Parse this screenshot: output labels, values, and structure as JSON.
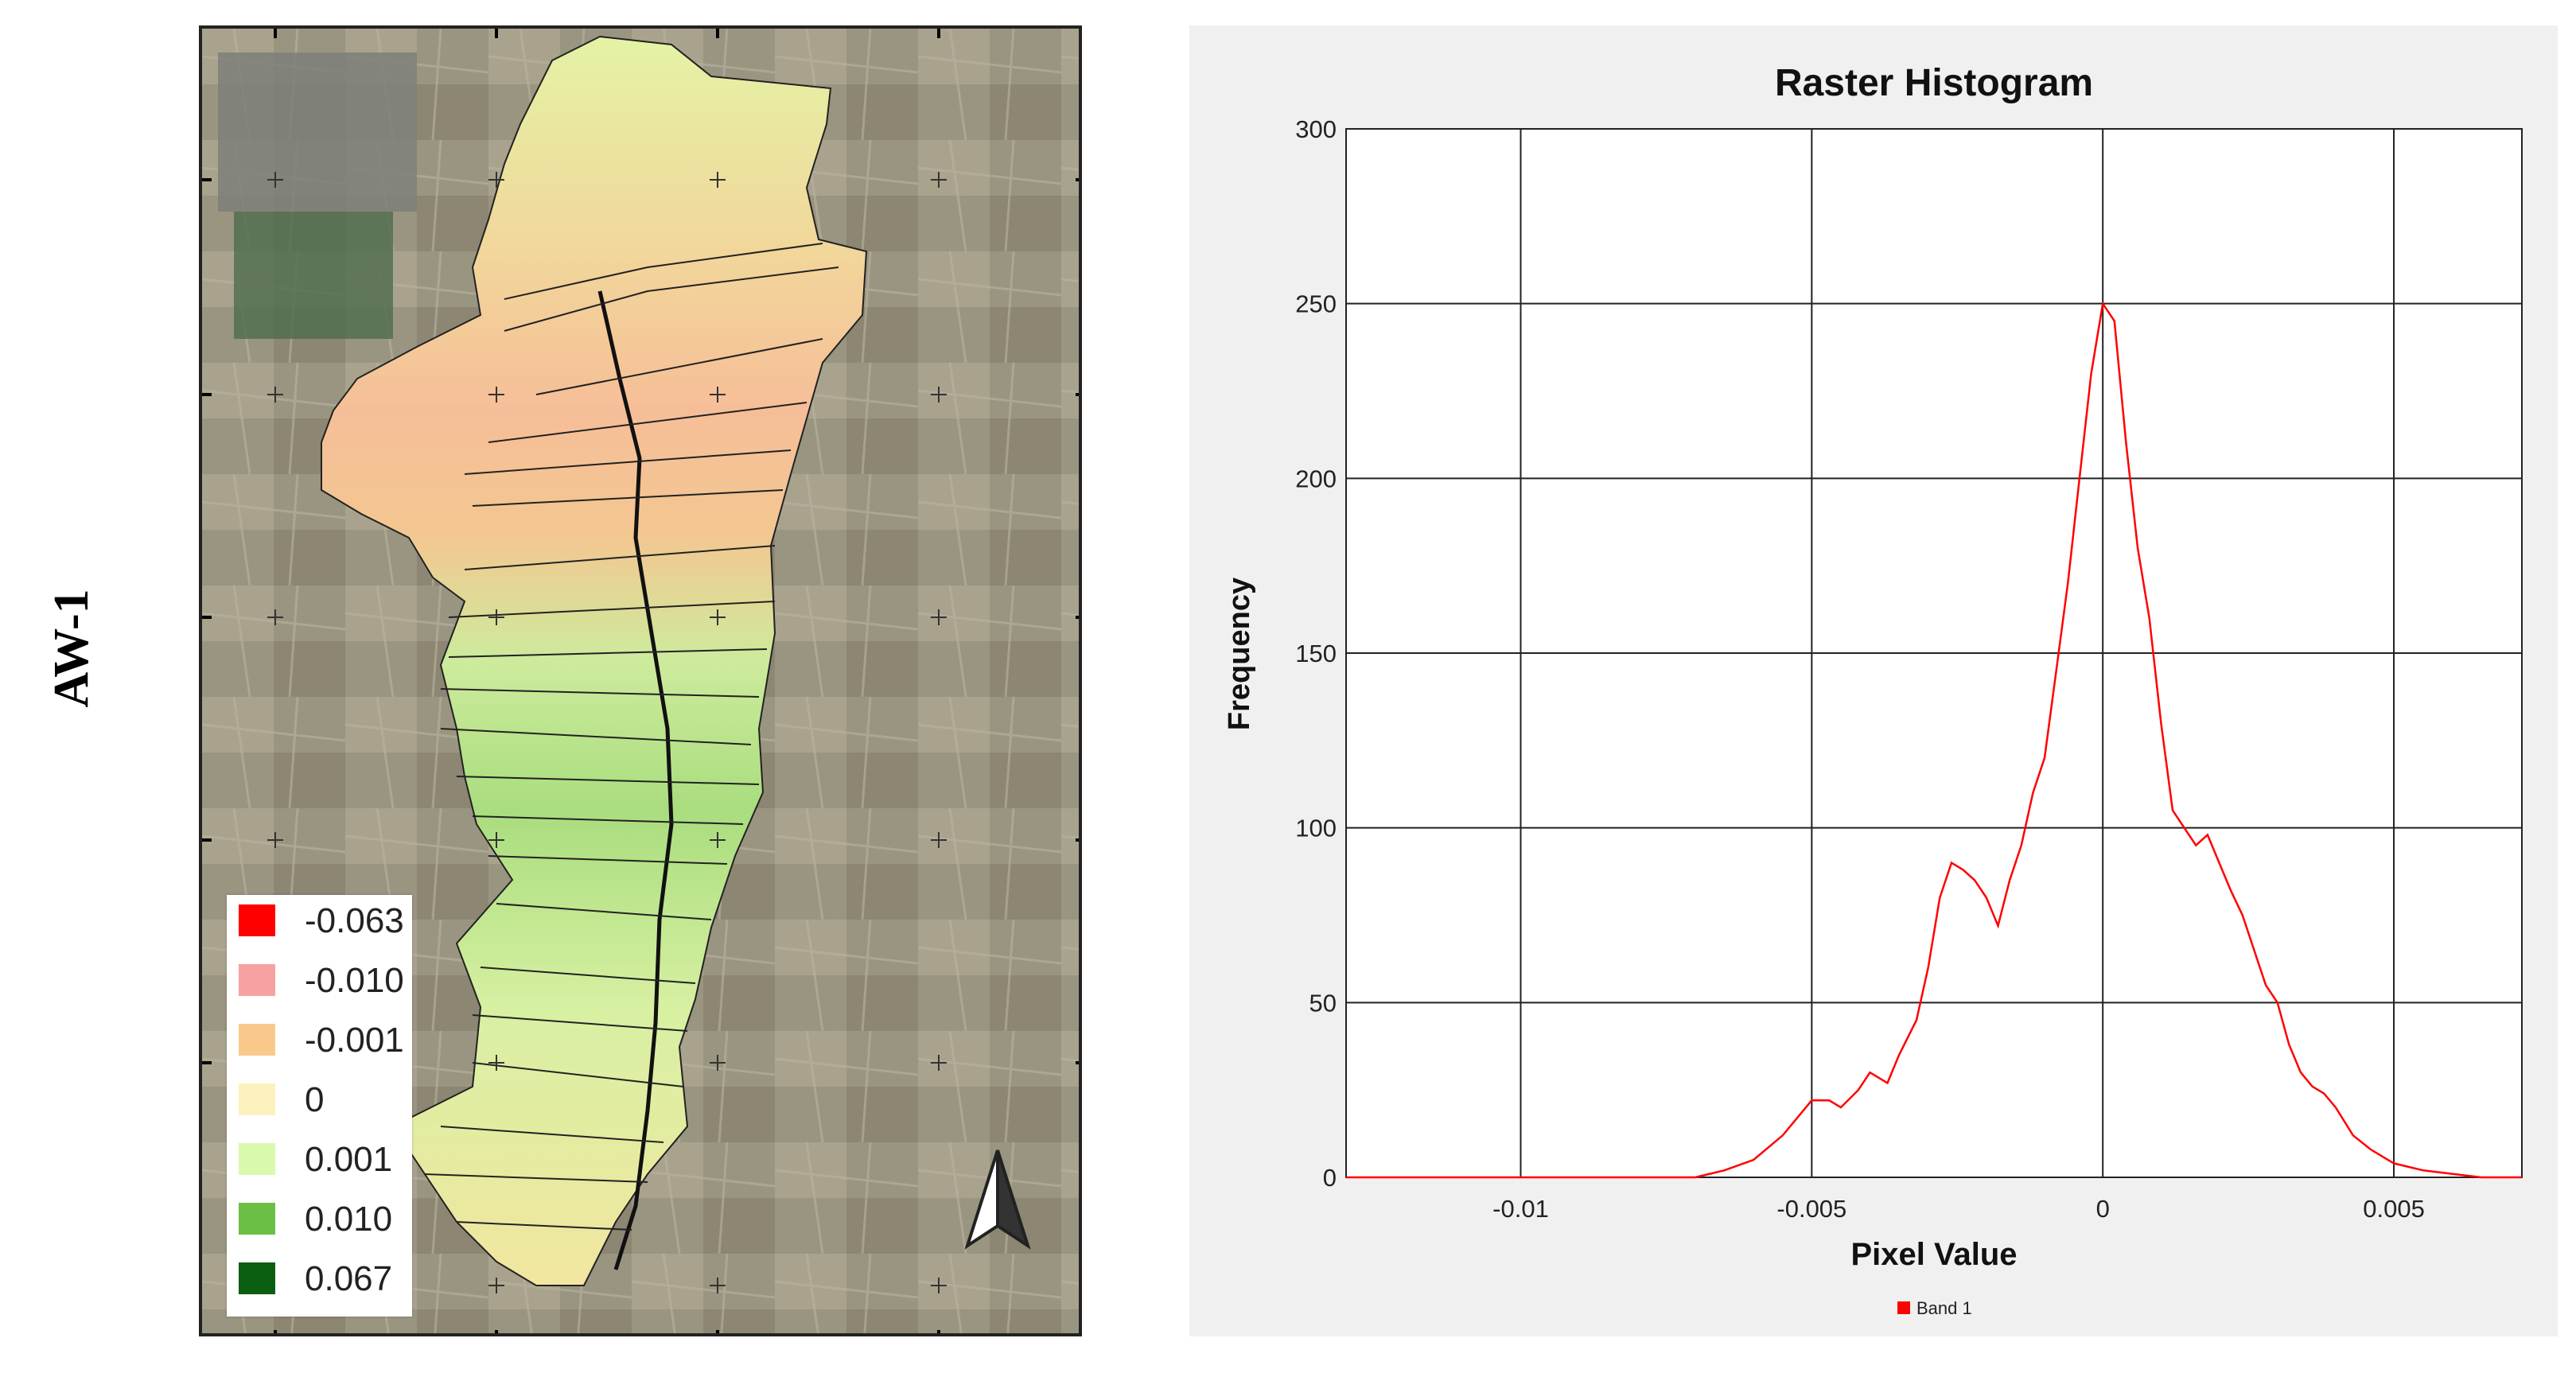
{
  "row_label": "AW-1",
  "legend": [
    {
      "label": "-0.063",
      "color": "#ff0000"
    },
    {
      "label": "-0.010",
      "color": "#f6a2a2"
    },
    {
      "label": "-0.001",
      "color": "#f9c98c"
    },
    {
      "label": "0",
      "color": "#fdf1bd"
    },
    {
      "label": "0.001",
      "color": "#d9f9ad"
    },
    {
      "label": "0.010",
      "color": "#6cbf45"
    },
    {
      "label": "0.067",
      "color": "#0a5e10"
    }
  ],
  "map": {
    "north_arrow": "north-arrow-icon"
  },
  "chart_data": {
    "type": "line",
    "title": "Raster Histogram",
    "xlabel": "Pixel Value",
    "ylabel": "Frequency",
    "xlim": [
      -0.013,
      0.0072
    ],
    "ylim": [
      0,
      300
    ],
    "xticks": [
      -0.01,
      -0.005,
      0,
      0.005
    ],
    "xtick_labels": [
      "-0.01",
      "-0.005",
      "0",
      "0.005"
    ],
    "yticks": [
      0,
      50,
      100,
      150,
      200,
      250,
      300
    ],
    "ytick_labels": [
      "0",
      "50",
      "100",
      "150",
      "200",
      "250",
      "300"
    ],
    "grid": true,
    "legend_position": "bottom-center",
    "series": [
      {
        "name": "Band 1",
        "color": "#ff0000",
        "x": [
          -0.013,
          -0.012,
          -0.011,
          -0.01,
          -0.009,
          -0.008,
          -0.007,
          -0.0065,
          -0.006,
          -0.0055,
          -0.005,
          -0.0047,
          -0.0045,
          -0.0042,
          -0.004,
          -0.0037,
          -0.0035,
          -0.0032,
          -0.003,
          -0.0028,
          -0.0026,
          -0.0024,
          -0.0022,
          -0.002,
          -0.0018,
          -0.0016,
          -0.0014,
          -0.0012,
          -0.001,
          -0.0008,
          -0.0006,
          -0.0004,
          -0.0002,
          0.0,
          0.0002,
          0.0004,
          0.0006,
          0.0008,
          0.001,
          0.0012,
          0.0014,
          0.0016,
          0.0018,
          0.002,
          0.0022,
          0.0024,
          0.0026,
          0.0028,
          0.003,
          0.0032,
          0.0034,
          0.0036,
          0.0038,
          0.004,
          0.0043,
          0.0046,
          0.005,
          0.0055,
          0.006,
          0.0065,
          0.0072
        ],
        "values": [
          0,
          0,
          0,
          0,
          0,
          0,
          0,
          2,
          5,
          12,
          22,
          22,
          20,
          25,
          30,
          27,
          35,
          45,
          60,
          80,
          90,
          88,
          85,
          80,
          72,
          85,
          95,
          110,
          120,
          145,
          170,
          200,
          230,
          250,
          245,
          210,
          180,
          160,
          130,
          105,
          100,
          95,
          98,
          90,
          82,
          75,
          65,
          55,
          50,
          38,
          30,
          26,
          24,
          20,
          12,
          8,
          4,
          2,
          1,
          0,
          0
        ]
      }
    ]
  }
}
